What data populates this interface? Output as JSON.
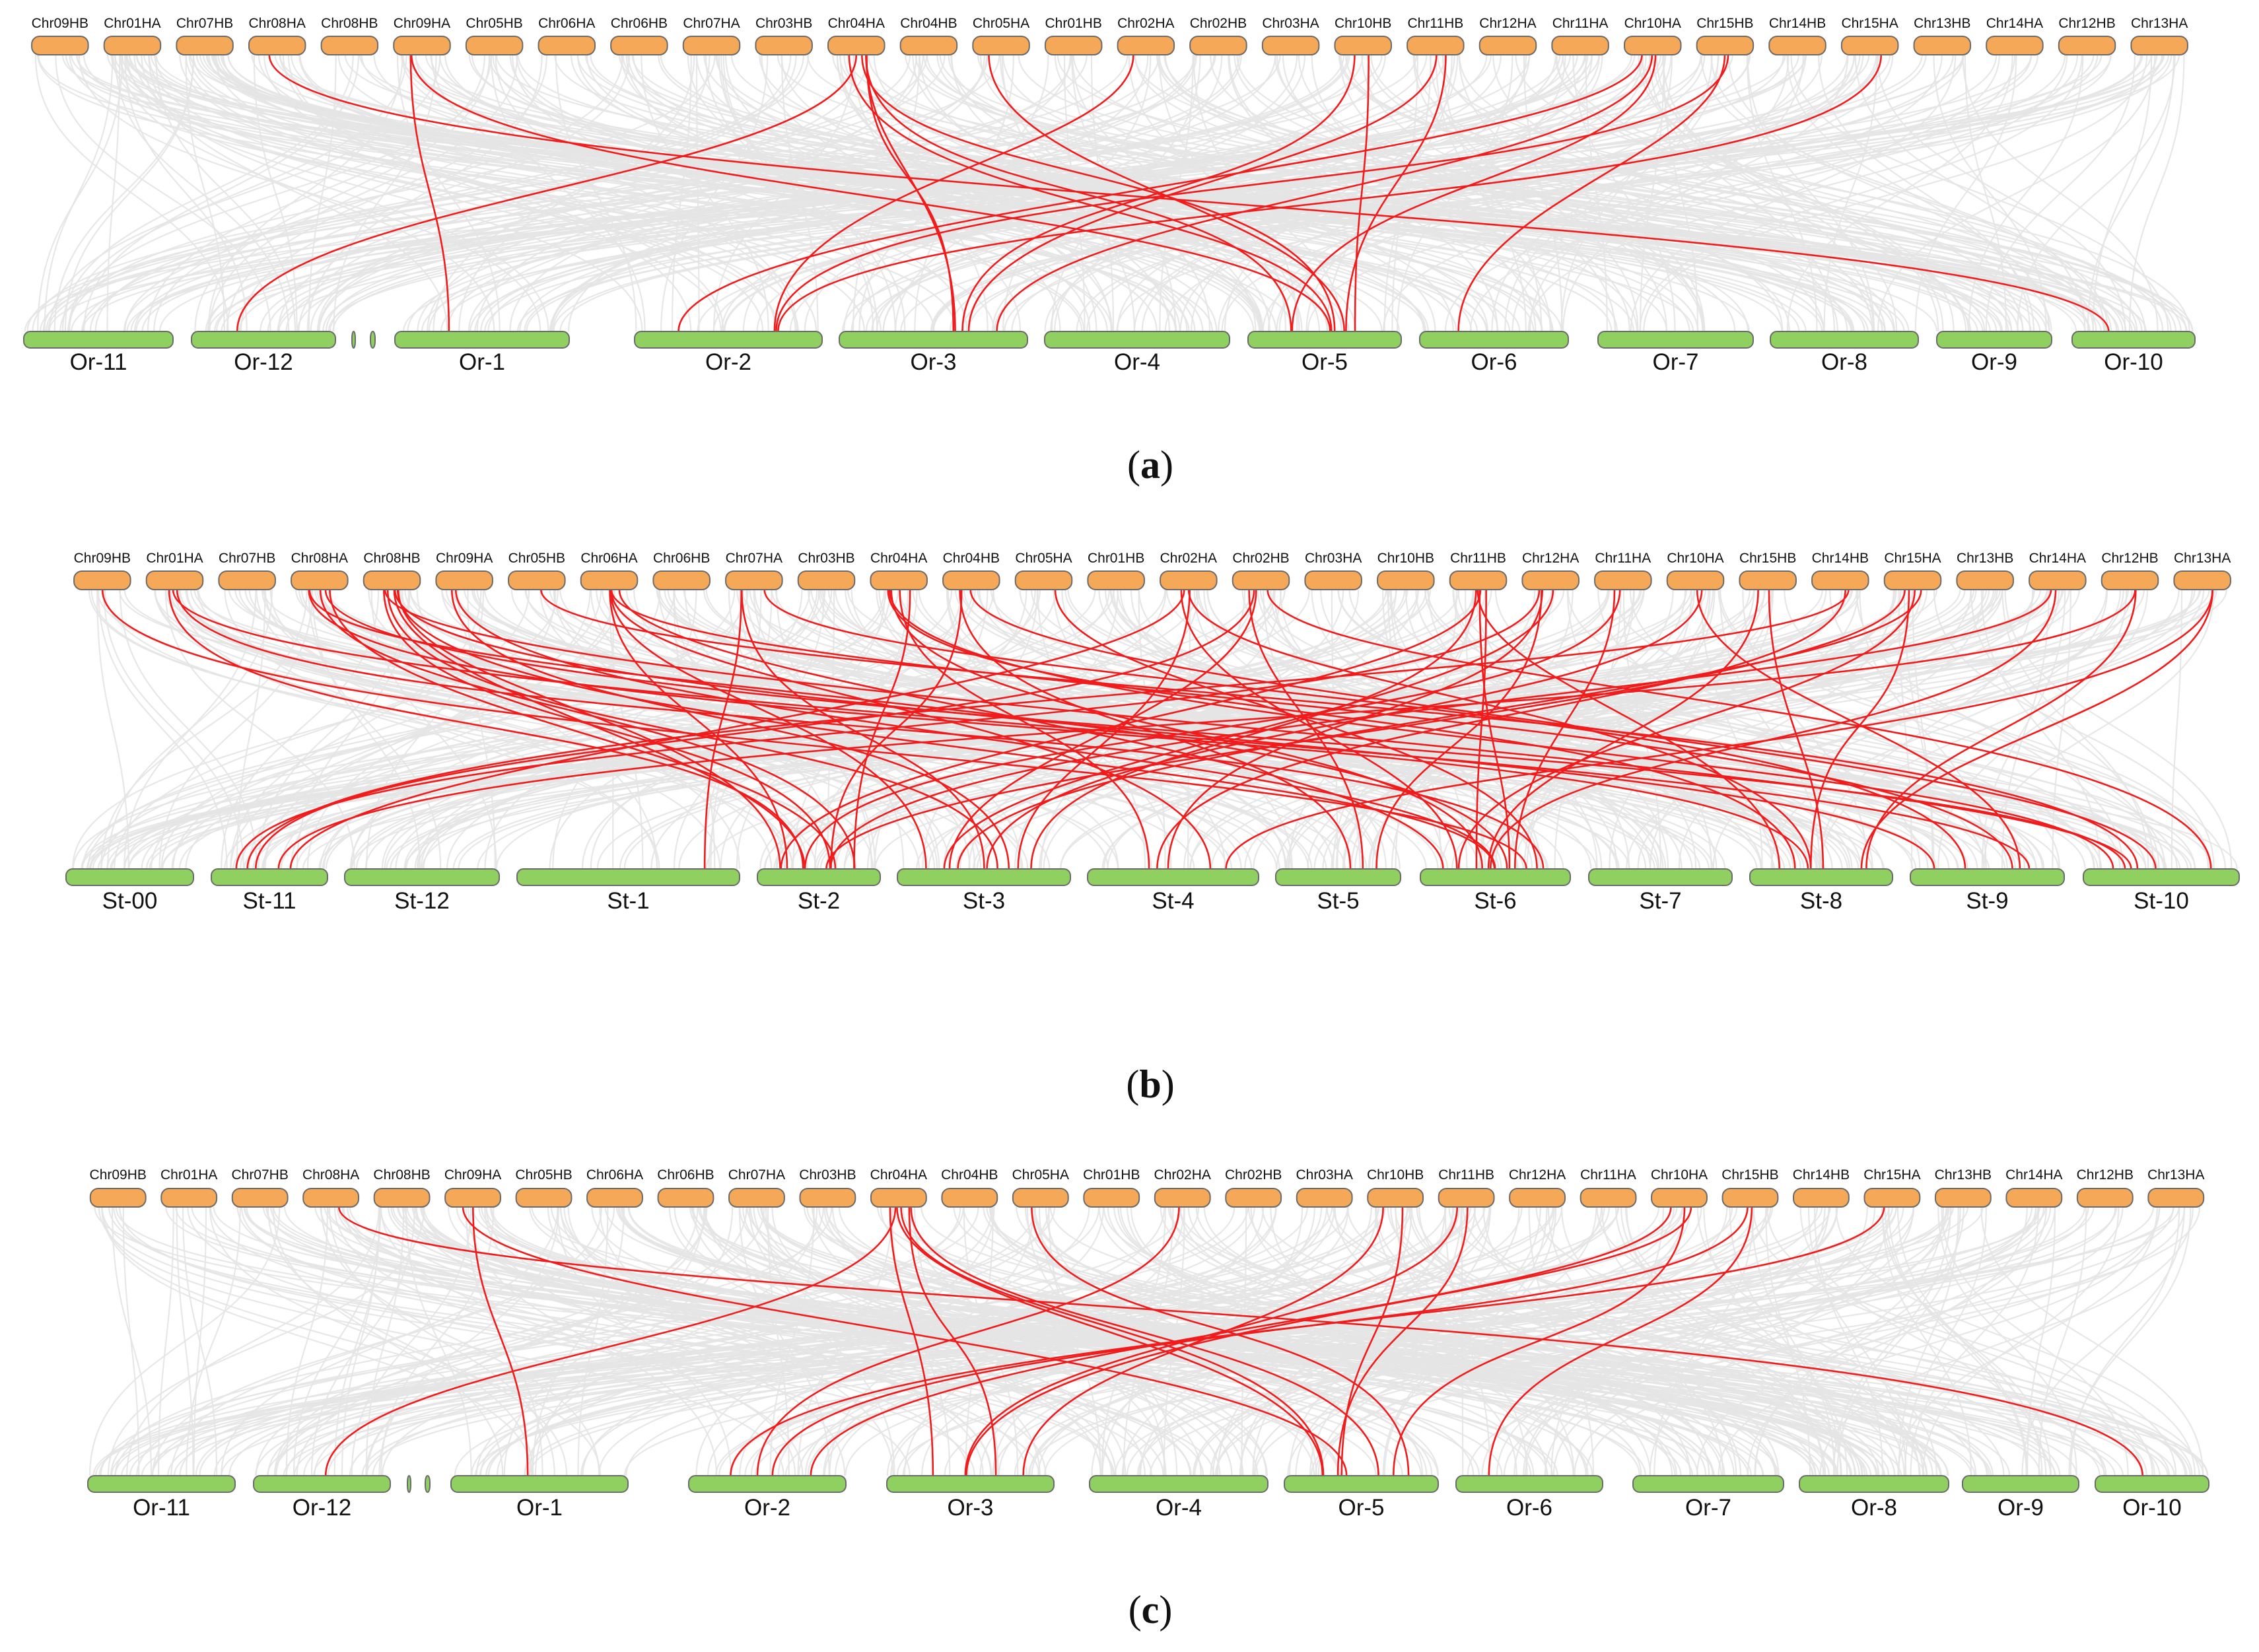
{
  "colors": {
    "top_chromosome": "#F5A858",
    "bottom_chromosome": "#90D060",
    "background_link": "#E4E4E4",
    "highlight_link": "#F21B1B",
    "outline": "#6B6B6B"
  },
  "panels": [
    {
      "id": "a",
      "caption_open": "(",
      "caption_letter": "a",
      "caption_close": ")",
      "top_chromosomes": [
        "Chr09HB",
        "Chr01HA",
        "Chr07HB",
        "Chr08HA",
        "Chr08HB",
        "Chr09HA",
        "Chr05HB",
        "Chr06HA",
        "Chr06HB",
        "Chr07HA",
        "Chr03HB",
        "Chr04HA",
        "Chr04HB",
        "Chr05HA",
        "Chr01HB",
        "Chr02HA",
        "Chr02HB",
        "Chr03HA",
        "Chr10HB",
        "Chr11HB",
        "Chr12HA",
        "Chr11HA",
        "Chr10HA",
        "Chr15HB",
        "Chr14HB",
        "Chr15HA",
        "Chr13HB",
        "Chr14HA",
        "Chr12HB",
        "Chr13HA"
      ],
      "bottom_chromosomes": [
        "Or-11",
        "Or-12",
        "",
        "",
        "Or-1",
        "Or-2",
        "Or-3",
        "Or-4",
        "Or-5",
        "Or-6",
        "Or-7",
        "Or-8",
        "Or-9",
        "Or-10"
      ],
      "highlight_links": [
        [
          3,
          13
        ],
        [
          5,
          4
        ],
        [
          5,
          8
        ],
        [
          11,
          1
        ],
        [
          11,
          6
        ],
        [
          11,
          6
        ],
        [
          11,
          8
        ],
        [
          11,
          8
        ],
        [
          11,
          8
        ],
        [
          15,
          5
        ],
        [
          18,
          6
        ],
        [
          18,
          8
        ],
        [
          19,
          6
        ],
        [
          19,
          8
        ],
        [
          22,
          5
        ],
        [
          22,
          6
        ],
        [
          22,
          8
        ],
        [
          23,
          5
        ],
        [
          23,
          9
        ],
        [
          25,
          5
        ],
        [
          13,
          8
        ]
      ]
    },
    {
      "id": "b",
      "caption_open": "(",
      "caption_letter": "b",
      "caption_close": ")",
      "top_chromosomes": [
        "Chr09HB",
        "Chr01HA",
        "Chr07HB",
        "Chr08HA",
        "Chr08HB",
        "Chr09HA",
        "Chr05HB",
        "Chr06HA",
        "Chr06HB",
        "Chr07HA",
        "Chr03HB",
        "Chr04HA",
        "Chr04HB",
        "Chr05HA",
        "Chr01HB",
        "Chr02HA",
        "Chr02HB",
        "Chr03HA",
        "Chr10HB",
        "Chr11HB",
        "Chr12HA",
        "Chr11HA",
        "Chr10HA",
        "Chr15HB",
        "Chr14HB",
        "Chr15HA",
        "Chr13HB",
        "Chr14HA",
        "Chr12HB",
        "Chr13HA"
      ],
      "bottom_chromosomes": [
        "St-00",
        "St-11",
        "St-12",
        "St-1",
        "St-2",
        "St-3",
        "St-4",
        "St-5",
        "St-6",
        "St-7",
        "St-8",
        "St-9",
        "St-10"
      ],
      "highlight_links": [
        [
          0,
          8
        ],
        [
          1,
          4
        ],
        [
          1,
          8
        ],
        [
          1,
          11
        ],
        [
          3,
          4
        ],
        [
          3,
          4
        ],
        [
          3,
          8
        ],
        [
          3,
          10
        ],
        [
          3,
          12
        ],
        [
          4,
          4
        ],
        [
          4,
          4
        ],
        [
          4,
          4
        ],
        [
          4,
          5
        ],
        [
          4,
          8
        ],
        [
          4,
          11
        ],
        [
          4,
          12
        ],
        [
          5,
          8
        ],
        [
          5,
          5
        ],
        [
          7,
          4
        ],
        [
          7,
          5
        ],
        [
          7,
          6
        ],
        [
          7,
          8
        ],
        [
          7,
          11
        ],
        [
          9,
          3
        ],
        [
          9,
          5
        ],
        [
          9,
          11
        ],
        [
          11,
          4
        ],
        [
          11,
          6
        ],
        [
          11,
          8
        ],
        [
          11,
          10
        ],
        [
          11,
          12
        ],
        [
          12,
          4
        ],
        [
          12,
          7
        ],
        [
          12,
          12
        ],
        [
          15,
          1
        ],
        [
          15,
          5
        ],
        [
          15,
          8
        ],
        [
          15,
          10
        ],
        [
          16,
          1
        ],
        [
          16,
          7
        ],
        [
          16,
          5
        ],
        [
          16,
          12
        ],
        [
          19,
          4
        ],
        [
          19,
          5
        ],
        [
          19,
          8
        ],
        [
          19,
          8
        ],
        [
          19,
          10
        ],
        [
          20,
          1
        ],
        [
          20,
          5
        ],
        [
          20,
          6
        ],
        [
          20,
          7
        ],
        [
          21,
          4
        ],
        [
          21,
          8
        ],
        [
          22,
          5
        ],
        [
          22,
          11
        ],
        [
          23,
          8
        ],
        [
          23,
          10
        ],
        [
          24,
          1
        ],
        [
          24,
          6
        ],
        [
          25,
          4
        ],
        [
          25,
          5
        ],
        [
          25,
          8
        ],
        [
          25,
          10
        ],
        [
          27,
          4
        ],
        [
          27,
          8
        ],
        [
          28,
          1
        ],
        [
          28,
          10
        ],
        [
          29,
          6
        ],
        [
          29,
          10
        ],
        [
          13,
          8
        ],
        [
          6,
          12
        ]
      ]
    },
    {
      "id": "c",
      "caption_open": "(",
      "caption_letter": "c",
      "caption_close": ")",
      "top_chromosomes": [
        "Chr09HB",
        "Chr01HA",
        "Chr07HB",
        "Chr08HA",
        "Chr08HB",
        "Chr09HA",
        "Chr05HB",
        "Chr06HA",
        "Chr06HB",
        "Chr07HA",
        "Chr03HB",
        "Chr04HA",
        "Chr04HB",
        "Chr05HA",
        "Chr01HB",
        "Chr02HA",
        "Chr02HB",
        "Chr03HA",
        "Chr10HB",
        "Chr11HB",
        "Chr12HA",
        "Chr11HA",
        "Chr10HA",
        "Chr15HB",
        "Chr14HB",
        "Chr15HA",
        "Chr13HB",
        "Chr14HA",
        "Chr12HB",
        "Chr13HA"
      ],
      "bottom_chromosomes": [
        "Or-11",
        "Or-12",
        "",
        "",
        "Or-1",
        "Or-2",
        "Or-3",
        "Or-4",
        "Or-5",
        "Or-6",
        "Or-7",
        "Or-8",
        "Or-9",
        "Or-10"
      ],
      "highlight_links": [
        [
          3,
          13
        ],
        [
          5,
          4
        ],
        [
          5,
          8
        ],
        [
          11,
          1
        ],
        [
          11,
          6
        ],
        [
          11,
          6
        ],
        [
          11,
          8
        ],
        [
          11,
          8
        ],
        [
          11,
          8
        ],
        [
          15,
          5
        ],
        [
          18,
          6
        ],
        [
          18,
          8
        ],
        [
          19,
          6
        ],
        [
          19,
          8
        ],
        [
          22,
          5
        ],
        [
          22,
          6
        ],
        [
          22,
          8
        ],
        [
          23,
          5
        ],
        [
          23,
          9
        ],
        [
          25,
          5
        ],
        [
          13,
          8
        ]
      ]
    }
  ]
}
